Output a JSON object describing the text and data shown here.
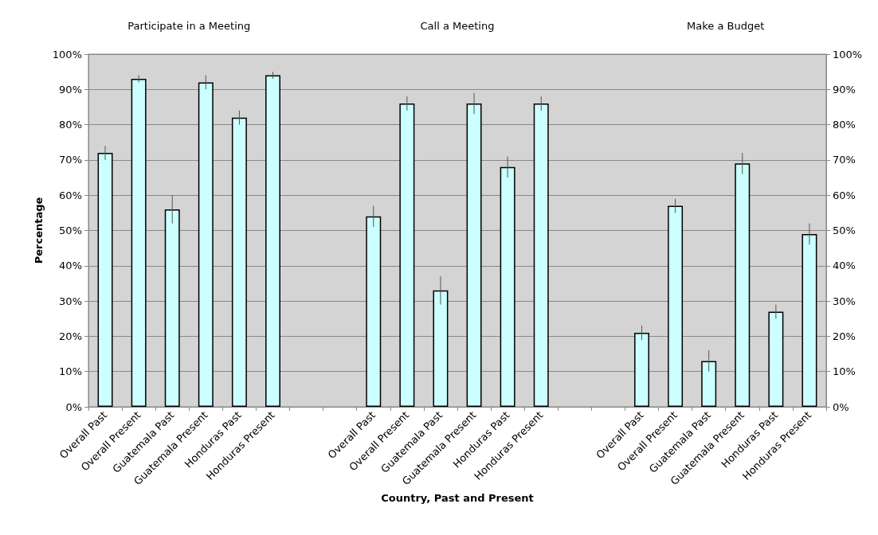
{
  "chart_data": {
    "type": "bar",
    "xlabel": "Country, Past and Present",
    "ylabel": "Percentage",
    "annotations": [
      "Participate in a Meeting",
      "Call a Meeting",
      "Make a Budget"
    ],
    "categories": [
      "Overall Past",
      "Overall Present",
      "Guatemala Past",
      "Guatemala Present",
      "Honduras Past",
      "Honduras Present",
      null,
      null,
      "Overall Past",
      "Overall Present",
      "Guatemala Past",
      "Guatemala Present",
      "Honduras Past",
      "Honduras Present",
      null,
      null,
      "Overall Past",
      "Overall Present",
      "Guatemala Past",
      "Guatemala Present",
      "Honduras Past",
      "Honduras Present"
    ],
    "values": [
      72,
      93,
      56,
      92,
      82,
      94,
      null,
      null,
      54,
      86,
      33,
      86,
      68,
      86,
      null,
      null,
      21,
      57,
      13,
      69,
      27,
      49
    ],
    "errors": [
      2,
      1,
      4,
      2,
      2,
      1,
      null,
      null,
      3,
      2,
      4,
      3,
      3,
      2,
      null,
      null,
      2,
      2,
      3,
      3,
      2,
      3
    ],
    "color": "#ccffff",
    "ylim": [
      0,
      100
    ],
    "yticks": [
      {
        "value": 0,
        "label": "0%"
      },
      {
        "value": 10,
        "label": "10%"
      },
      {
        "value": 20,
        "label": "20%"
      },
      {
        "value": 30,
        "label": "30%"
      },
      {
        "value": 40,
        "label": "40%"
      },
      {
        "value": 50,
        "label": "50%"
      },
      {
        "value": 60,
        "label": "60%"
      },
      {
        "value": 70,
        "label": "70%"
      },
      {
        "value": 80,
        "label": "80%"
      },
      {
        "value": 90,
        "label": "90%"
      },
      {
        "value": 100,
        "label": "100%"
      }
    ],
    "y2lim": [
      0,
      100
    ],
    "y2ticks": [
      {
        "value": 0,
        "label": "0%"
      },
      {
        "value": 10,
        "label": "10%"
      },
      {
        "value": 20,
        "label": "20%"
      },
      {
        "value": 30,
        "label": "30%"
      },
      {
        "value": 40,
        "label": "40%"
      },
      {
        "value": 50,
        "label": "50%"
      },
      {
        "value": 60,
        "label": "60%"
      },
      {
        "value": 70,
        "label": "70%"
      },
      {
        "value": 80,
        "label": "80%"
      },
      {
        "value": 90,
        "label": "90%"
      },
      {
        "value": 100,
        "label": "100%"
      }
    ],
    "grid": "y"
  }
}
